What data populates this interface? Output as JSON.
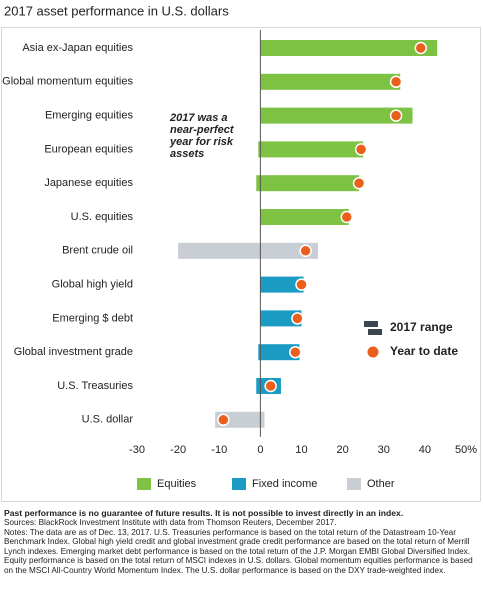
{
  "chart_data": {
    "type": "range",
    "title": "2017 asset performance in U.S. dollars",
    "annotation": [
      "2017 was a",
      "near-perfect",
      "year for risk",
      "assets"
    ],
    "range_legend": "2017 range",
    "range_legend_color": "#3b4650",
    "ytd_legend": "Year to date",
    "ytd_color": "#e8601c",
    "groups": [
      {
        "name": "Equities",
        "color": "#7dc242",
        "categories": [
          "Asia ex-Japan equities",
          "Global momentum equities",
          "Emerging equities",
          "European equities",
          "Japanese equities",
          "U.S. equities"
        ],
        "low": [
          0,
          0,
          0,
          -0.5,
          -1,
          0
        ],
        "high": [
          43,
          34,
          37,
          25,
          24,
          21.5
        ],
        "ytd": [
          39,
          33,
          33,
          24.5,
          24,
          21
        ]
      },
      {
        "name": "Other",
        "color": "#c9ced4",
        "categories": [
          "Brent crude oil"
        ],
        "low": [
          -20
        ],
        "high": [
          14
        ],
        "ytd": [
          11
        ]
      },
      {
        "name": "Fixed income",
        "color": "#1a9bc3",
        "categories": [
          "Global high yield",
          "Emerging $ debt",
          "Global investment grade",
          "U.S. Treasuries"
        ],
        "low": [
          0,
          0,
          -0.5,
          -1
        ],
        "high": [
          10.5,
          10,
          9.5,
          5
        ],
        "ytd": [
          10,
          9,
          8.5,
          2.5
        ]
      },
      {
        "name": "Other",
        "color": "#c9ced4",
        "categories": [
          "U.S. dollar"
        ],
        "low": [
          -11
        ],
        "high": [
          1
        ],
        "ytd": [
          -9
        ]
      }
    ],
    "legend": [
      {
        "name": "Equities",
        "color": "#7dc242"
      },
      {
        "name": "Fixed income",
        "color": "#1a9bc3"
      },
      {
        "name": "Other",
        "color": "#c9ced4"
      }
    ],
    "xlim": [
      -30,
      50
    ],
    "xticks": [
      -30,
      -20,
      -10,
      0,
      10,
      20,
      30,
      40,
      {
        "value": 50,
        "label": "50%"
      }
    ]
  },
  "footer": {
    "disclaimer": "Past performance is no guarantee of future results. It is not possible to invest directly in an index.",
    "sources": "Sources: BlackRock Investment Institute with data from Thomson Reuters, December 2017.",
    "notes": "Notes: The data are as of Dec. 13, 2017. U.S. Treasuries performance is based on the total return of the Datastream 10-Year Benchmark Index. Global high yield credit and global investment grade credit performance are based on the total return of Merrill Lynch indexes. Emerging market debt performance is based on the total return of the J.P. Morgan EMBI Global Diversified Index. Equity performance is based on the total return of MSCI indexes in U.S. dollars. Global momentum equities performance is based on the MSCI All-Country World Momentum Index. The U.S. dollar performance is based on the DXY trade-weighted index."
  }
}
